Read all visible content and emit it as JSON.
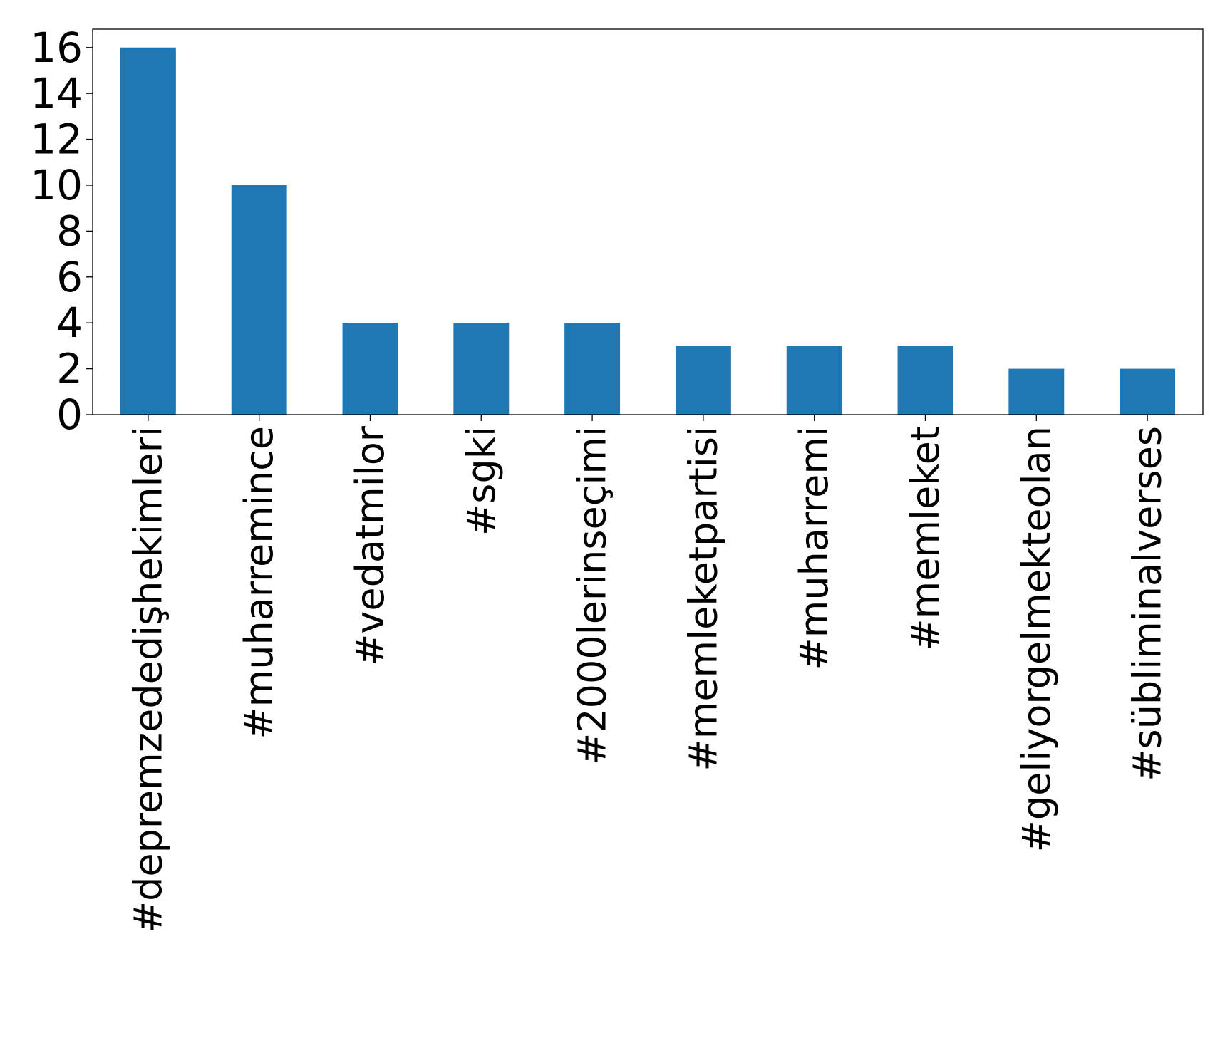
{
  "chart_data": {
    "type": "bar",
    "title": "",
    "xlabel": "",
    "ylabel": "",
    "categories": [
      "#depremzededişhekimleri",
      "#muharremince",
      "#vedatmilor",
      "#sgki",
      "#2000lerinseçimi",
      "#memleketpartisi",
      "#muharremi",
      "#memleket",
      "#geliyorgelmekteolan",
      "#sübliminalverses"
    ],
    "values": [
      16,
      10,
      4,
      4,
      4,
      3,
      3,
      3,
      2,
      2
    ],
    "ylim": [
      0,
      16.8
    ],
    "yticks": [
      "0",
      "2",
      "4",
      "6",
      "8",
      "10",
      "12",
      "14",
      "16"
    ],
    "bar_color": "#1f77b4",
    "grid": false,
    "legend": "none"
  }
}
